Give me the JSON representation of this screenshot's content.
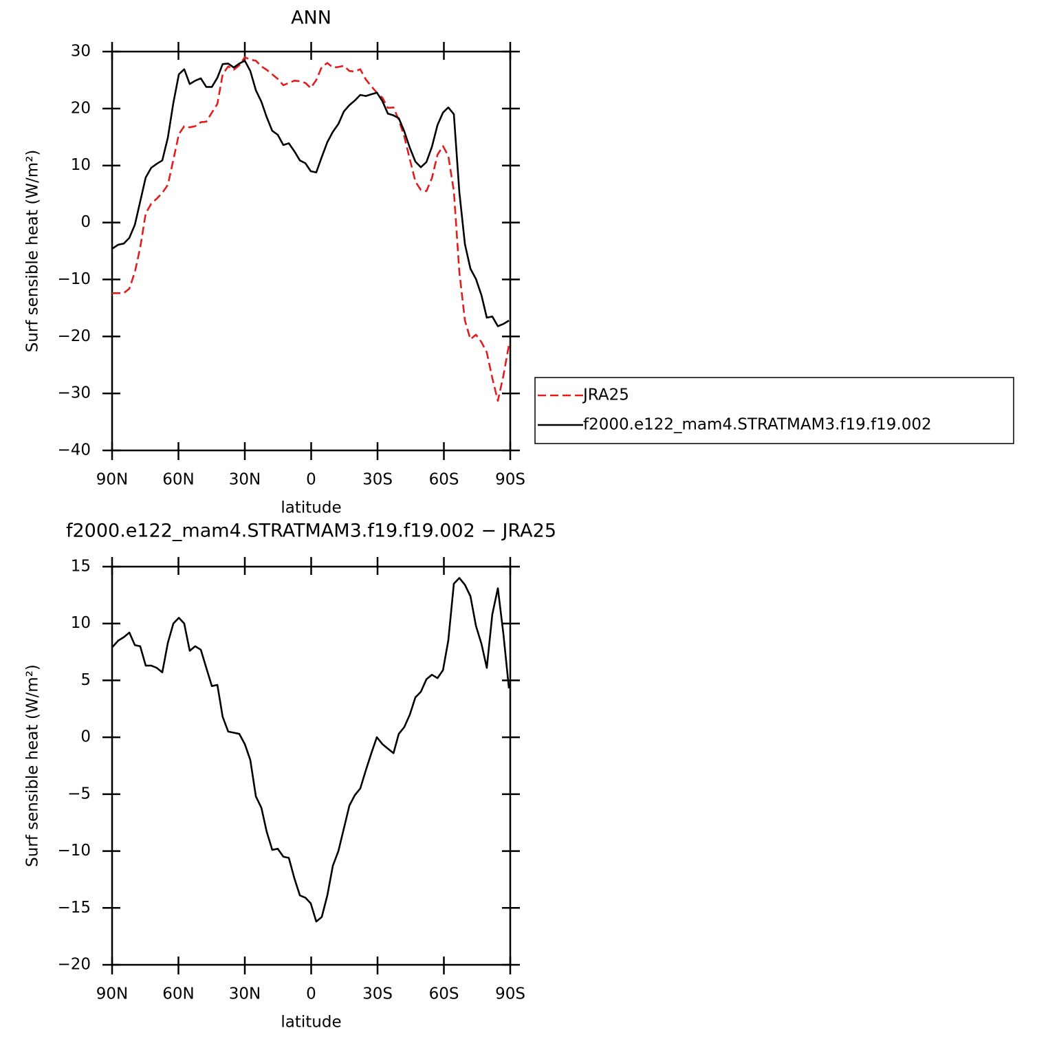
{
  "chart_data": [
    {
      "type": "line",
      "title": "ANN",
      "xlabel": "latitude",
      "ylabel": "Surf sensible heat (W/m²)",
      "x": [
        90,
        87.2,
        84.7,
        82.2,
        79.7,
        77.3,
        74.8,
        72.3,
        69.8,
        67.3,
        64.8,
        62.3,
        59.8,
        57.4,
        54.9,
        52.4,
        49.9,
        47.4,
        44.9,
        42.4,
        40.0,
        37.5,
        35.0,
        32.5,
        30.0,
        27.5,
        25.0,
        22.5,
        20.1,
        17.6,
        15.1,
        12.6,
        10.1,
        7.6,
        5.1,
        2.6,
        0.2,
        -2.3,
        -4.8,
        -7.3,
        -9.8,
        -12.3,
        -14.8,
        -17.3,
        -19.7,
        -22.2,
        -24.7,
        -27.2,
        -29.7,
        -32.2,
        -34.7,
        -37.2,
        -39.6,
        -42.1,
        -44.6,
        -47.1,
        -49.6,
        -52.1,
        -54.6,
        -57.1,
        -59.6,
        -62.0,
        -64.5,
        -67.0,
        -69.5,
        -72.0,
        -74.5,
        -77.0,
        -79.4,
        -81.9,
        -84.4,
        -86.9,
        -89.4
      ],
      "series": [
        {
          "name": "JRA25",
          "color": "#e41a1c",
          "linestyle": "dashed",
          "values": [
            -12.4,
            -12.4,
            -12.4,
            -11.6,
            -8.7,
            -4.4,
            1.6,
            3.3,
            4.2,
            5.2,
            6.6,
            11,
            15.5,
            16.9,
            16.7,
            16.9,
            17.6,
            17.7,
            19.3,
            20.8,
            26,
            27.4,
            26.8,
            27.6,
            29,
            28.6,
            28.4,
            27.4,
            26.8,
            26,
            25.2,
            24.1,
            24.5,
            24.9,
            24.8,
            24.5,
            23.6,
            25,
            27.3,
            28,
            27.2,
            27.3,
            27.5,
            26.6,
            26.5,
            26.9,
            25.1,
            23.9,
            22.8,
            21.9,
            20.1,
            20.2,
            18,
            15.1,
            11.1,
            7.2,
            5.7,
            5.5,
            7.8,
            11.9,
            13.4,
            11.7,
            5.5,
            -8.7,
            -17.2,
            -20.5,
            -19.7,
            -21,
            -22.8,
            -27.3,
            -31.3,
            -26.9,
            -21.5
          ]
        },
        {
          "name": "f2000.e122_mam4.STRATMAM3.f19.f19.002",
          "color": "#000000",
          "linestyle": "solid",
          "values": [
            -4.6,
            -3.9,
            -3.7,
            -2.7,
            -0.4,
            3.7,
            7.9,
            9.6,
            10.3,
            10.9,
            14.9,
            21,
            26,
            26.9,
            24.3,
            24.9,
            25.3,
            23.8,
            23.8,
            25.4,
            27.8,
            27.9,
            27.2,
            27.9,
            28.4,
            26.6,
            23.2,
            21.2,
            18.5,
            16.1,
            15.4,
            13.6,
            13.9,
            12.5,
            10.9,
            10.4,
            9,
            8.8,
            11.5,
            14.1,
            15.9,
            17.3,
            19.5,
            20.6,
            21.4,
            22.4,
            22.2,
            22.5,
            22.8,
            21.3,
            19.1,
            18.8,
            18.3,
            16,
            13.1,
            10.7,
            9.7,
            10.6,
            13.3,
            17.1,
            19.3,
            20.2,
            19,
            5.3,
            -3.8,
            -8.1,
            -9.9,
            -12.8,
            -16.7,
            -16.5,
            -18.2,
            -17.8,
            -17.2
          ]
        }
      ],
      "xlim": [
        90,
        -90
      ],
      "xticks": [
        {
          "value": 90,
          "label": "90N"
        },
        {
          "value": 60,
          "label": "60N"
        },
        {
          "value": 30,
          "label": "30N"
        },
        0,
        {
          "value": -30,
          "label": "30S"
        },
        {
          "value": -60,
          "label": "60S"
        },
        {
          "value": -90,
          "label": "90S"
        }
      ],
      "ylim": [
        -40,
        30
      ],
      "yticks": [
        {
          "value": -40,
          "label": "−40"
        },
        {
          "value": -30,
          "label": "−30"
        },
        {
          "value": -20,
          "label": "−20"
        },
        {
          "value": -10,
          "label": "−10"
        },
        0,
        10,
        20,
        30
      ],
      "legend": "right"
    },
    {
      "type": "line",
      "title": "f2000.e122_mam4.STRATMAM3.f19.f19.002 − JRA25",
      "xlabel": "latitude",
      "ylabel": "Surf sensible heat (W/m²)",
      "x": [
        90,
        87.2,
        84.7,
        82.2,
        79.7,
        77.3,
        74.8,
        72.3,
        69.8,
        67.3,
        64.8,
        62.3,
        59.8,
        57.4,
        54.9,
        52.4,
        49.9,
        47.4,
        44.9,
        42.4,
        40.0,
        37.5,
        35.0,
        32.5,
        30.0,
        27.5,
        25.0,
        22.5,
        20.1,
        17.6,
        15.1,
        12.6,
        10.1,
        7.6,
        5.1,
        2.6,
        0.2,
        -2.3,
        -4.8,
        -7.3,
        -9.8,
        -12.3,
        -14.8,
        -17.3,
        -19.7,
        -22.2,
        -24.7,
        -27.2,
        -29.7,
        -32.2,
        -34.7,
        -37.2,
        -39.6,
        -42.1,
        -44.6,
        -47.1,
        -49.6,
        -52.1,
        -54.6,
        -57.1,
        -59.6,
        -62.0,
        -64.5,
        -67.0,
        -69.5,
        -72.0,
        -74.5,
        -77.0,
        -79.4,
        -81.9,
        -84.4,
        -86.9,
        -89.4
      ],
      "values": [
        7.9,
        8.5,
        8.8,
        9.2,
        8.1,
        8.0,
        6.3,
        6.3,
        6.1,
        5.7,
        8.3,
        10.0,
        10.5,
        10.0,
        7.6,
        8.0,
        7.7,
        6.1,
        4.5,
        4.6,
        1.8,
        0.5,
        0.4,
        0.3,
        -0.6,
        -2.0,
        -5.2,
        -6.2,
        -8.3,
        -9.9,
        -9.8,
        -10.5,
        -10.6,
        -12.4,
        -13.9,
        -14.1,
        -14.6,
        -16.2,
        -15.8,
        -13.9,
        -11.3,
        -10.0,
        -8.0,
        -6.0,
        -5.1,
        -4.5,
        -2.9,
        -1.4,
        0.0,
        -0.6,
        -1.0,
        -1.4,
        0.3,
        0.9,
        2.0,
        3.5,
        4.0,
        5.1,
        5.5,
        5.2,
        5.9,
        8.5,
        13.5,
        14.0,
        13.4,
        12.4,
        9.8,
        8.2,
        6.1,
        10.8,
        13.1,
        9.1,
        4.3
      ],
      "color": "#000000",
      "xlim": [
        90,
        -90
      ],
      "xticks": [
        {
          "value": 90,
          "label": "90N"
        },
        {
          "value": 60,
          "label": "60N"
        },
        {
          "value": 30,
          "label": "30N"
        },
        0,
        {
          "value": -30,
          "label": "30S"
        },
        {
          "value": -60,
          "label": "60S"
        },
        {
          "value": -90,
          "label": "90S"
        }
      ],
      "ylim": [
        -20,
        15
      ],
      "yticks": [
        {
          "value": -20,
          "label": "−20"
        },
        {
          "value": -15,
          "label": "−15"
        },
        {
          "value": -10,
          "label": "−10"
        },
        {
          "value": -5,
          "label": "−5"
        },
        0,
        5,
        10,
        15
      ]
    }
  ]
}
